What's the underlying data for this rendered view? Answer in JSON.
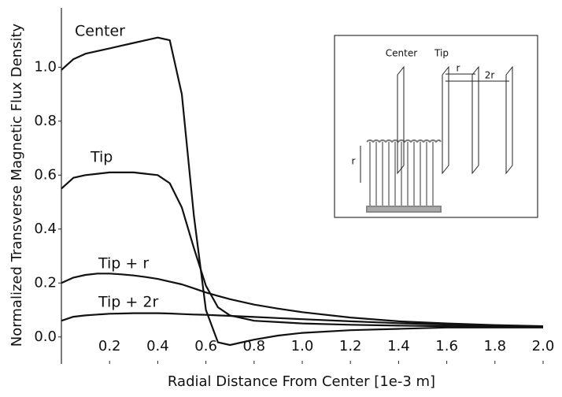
{
  "chart_data": {
    "type": "line",
    "x_label": "Radial Distance From Center [1e-3 m]",
    "y_label": "Normalized Transverse Magnetic Flux Density",
    "x": [
      0,
      0.05,
      0.1,
      0.15,
      0.2,
      0.25,
      0.3,
      0.35,
      0.4,
      0.45,
      0.5,
      0.55,
      0.6,
      0.65,
      0.7,
      0.8,
      0.9,
      1.0,
      1.2,
      1.4,
      1.6,
      1.8,
      2.0
    ],
    "series": [
      {
        "name": "Center",
        "color": "#111111",
        "values": [
          0.99,
          1.03,
          1.05,
          1.06,
          1.07,
          1.08,
          1.09,
          1.1,
          1.11,
          1.1,
          0.9,
          0.45,
          0.1,
          -0.02,
          -0.03,
          -0.01,
          0.005,
          0.015,
          0.025,
          0.03,
          0.035,
          0.035,
          0.035
        ]
      },
      {
        "name": "Tip",
        "color": "#111111",
        "values": [
          0.55,
          0.59,
          0.6,
          0.605,
          0.61,
          0.61,
          0.61,
          0.605,
          0.6,
          0.57,
          0.48,
          0.33,
          0.19,
          0.11,
          0.08,
          0.06,
          0.055,
          0.05,
          0.045,
          0.042,
          0.04,
          0.038,
          0.037
        ]
      },
      {
        "name": "Tip + r",
        "color": "#111111",
        "values": [
          0.2,
          0.22,
          0.23,
          0.235,
          0.235,
          0.232,
          0.228,
          0.222,
          0.215,
          0.205,
          0.195,
          0.18,
          0.165,
          0.152,
          0.14,
          0.12,
          0.105,
          0.092,
          0.072,
          0.058,
          0.05,
          0.044,
          0.04
        ]
      },
      {
        "name": "Tip + 2r",
        "color": "#111111",
        "values": [
          0.06,
          0.075,
          0.08,
          0.083,
          0.086,
          0.087,
          0.088,
          0.088,
          0.088,
          0.087,
          0.085,
          0.083,
          0.082,
          0.08,
          0.078,
          0.074,
          0.07,
          0.066,
          0.058,
          0.051,
          0.046,
          0.042,
          0.039
        ]
      }
    ],
    "xlim": [
      0,
      2.0
    ],
    "ylim": [
      -0.1,
      1.22
    ],
    "xticks": [
      0.2,
      0.4,
      0.6,
      0.8,
      {
        "value": 1,
        "label": "1.0"
      },
      1.2,
      1.4,
      1.6,
      1.8,
      {
        "value": 2,
        "label": "2.0"
      }
    ],
    "yticks": [
      {
        "value": 0,
        "label": "0.0"
      },
      0.2,
      0.4,
      0.6,
      0.8,
      {
        "value": 1,
        "label": "1.0"
      }
    ],
    "grid": false,
    "inset": {
      "labels": [
        "Center",
        "Tip",
        "r",
        "2r",
        "r"
      ]
    }
  }
}
